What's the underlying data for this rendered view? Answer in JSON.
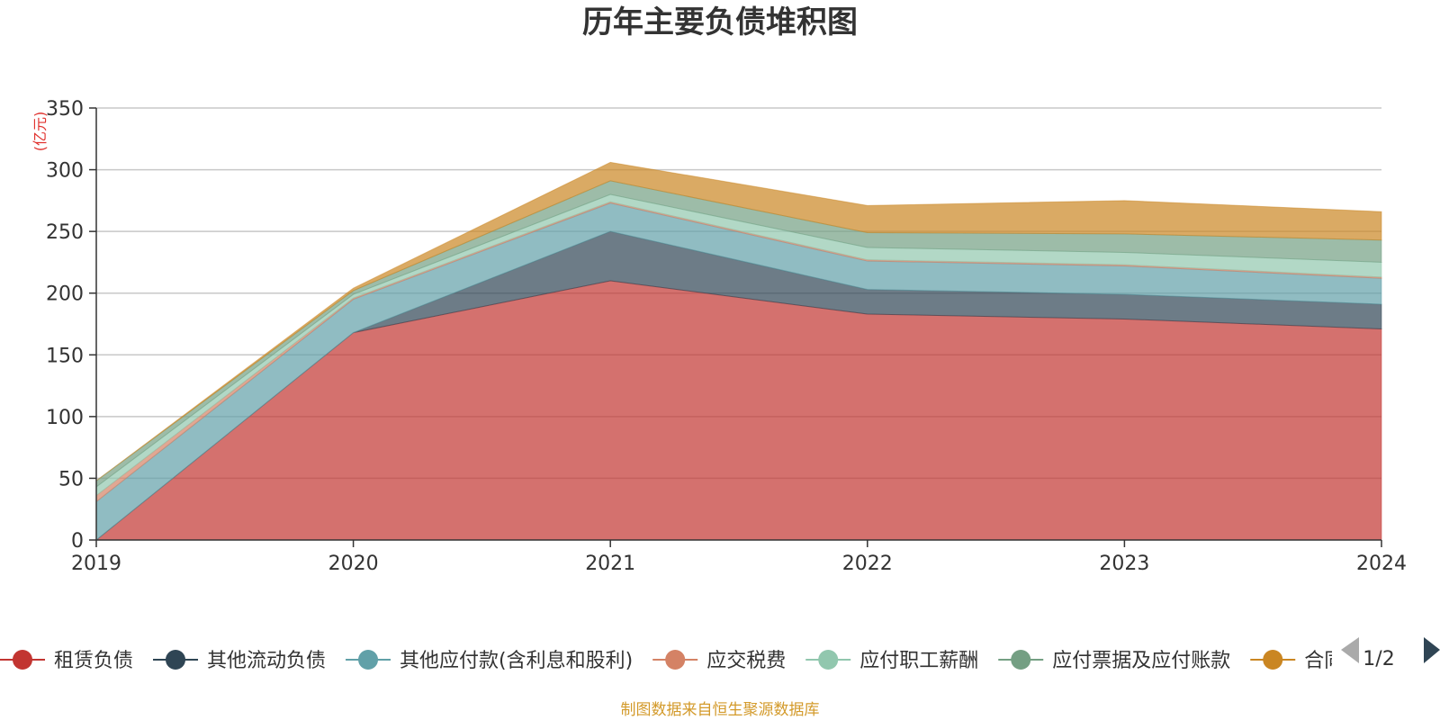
{
  "chart_data": {
    "type": "area",
    "stacked": true,
    "title": "历年主要负债堆积图",
    "unit": "(亿元)",
    "categories": [
      "2019",
      "2020",
      "2021",
      "2022",
      "2023",
      "2024"
    ],
    "ylim": [
      0,
      350
    ],
    "yticks": [
      0,
      50,
      100,
      150,
      200,
      250,
      300,
      350
    ],
    "grid": true,
    "series": [
      {
        "name": "租赁负债",
        "color": "#c23531",
        "values": [
          0,
          168,
          210,
          183,
          179,
          171
        ]
      },
      {
        "name": "其他流动负债",
        "color": "#2f4554",
        "values": [
          0,
          0,
          40,
          20,
          20,
          20
        ]
      },
      {
        "name": "其他应付款(含利息和股利)",
        "color": "#61a0a8",
        "values": [
          31,
          27,
          23,
          23,
          23,
          21
        ]
      },
      {
        "name": "应交税费",
        "color": "#d48265",
        "values": [
          5,
          1,
          1,
          1,
          1,
          1
        ]
      },
      {
        "name": "应付职工薪酬",
        "color": "#91c7ae",
        "values": [
          7,
          3,
          6,
          10,
          10,
          12
        ]
      },
      {
        "name": "应付票据及应付账款",
        "color": "#749f83",
        "values": [
          5,
          3,
          11,
          12,
          15,
          18
        ]
      },
      {
        "name": "合同负债",
        "color": "#ca8622",
        "values": [
          0,
          2,
          15,
          22,
          27,
          23
        ]
      }
    ],
    "legend_position": "bottom",
    "legend_page": "1/2"
  },
  "footer": {
    "source": "制图数据来自恒生聚源数据库"
  }
}
